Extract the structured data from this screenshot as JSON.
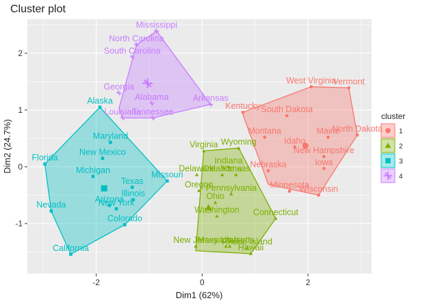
{
  "chart_data": {
    "type": "scatter",
    "title": "Cluster plot",
    "xlabel": "Dim1 (62%)",
    "ylabel": "Dim2 (24.7%)",
    "xlim": [
      -3.3,
      3.2
    ],
    "ylim": [
      -1.88,
      2.6
    ],
    "xticks": [
      -2,
      0,
      2
    ],
    "yticks": [
      -1,
      0,
      1,
      2
    ],
    "xtick_labels": [
      "-2",
      "0",
      "2"
    ],
    "ytick_labels": [
      "-1",
      "0",
      "1",
      "2"
    ],
    "grid": true,
    "legend": {
      "title": "cluster",
      "position": "right",
      "labels": [
        "1",
        "2",
        "3",
        "4"
      ]
    },
    "clusters": [
      {
        "name": "1",
        "color": "#F8766D",
        "shape": "circle",
        "center": [
          1.95,
          0.37
        ],
        "hull": [
          [
            0.77,
            0.96
          ],
          [
            2.06,
            1.41
          ],
          [
            2.77,
            1.39
          ],
          [
            2.93,
            0.56
          ],
          [
            2.2,
            -0.5
          ],
          [
            1.25,
            -0.31
          ],
          [
            0.77,
            0.92
          ]
        ],
        "points": [
          {
            "label": "West Virginia",
            "x": 2.06,
            "y": 1.41
          },
          {
            "label": "Vermont",
            "x": 2.77,
            "y": 1.39
          },
          {
            "label": "Kentucky",
            "x": 0.77,
            "y": 0.96
          },
          {
            "label": "South Dakota",
            "x": 1.6,
            "y": 0.9
          },
          {
            "label": "Montana",
            "x": 1.18,
            "y": 0.52
          },
          {
            "label": "Maine",
            "x": 2.38,
            "y": 0.52
          },
          {
            "label": "North Dakota",
            "x": 2.93,
            "y": 0.56
          },
          {
            "label": "Idaho",
            "x": 1.75,
            "y": 0.35
          },
          {
            "label": "New Hampshire",
            "x": 2.3,
            "y": 0.18
          },
          {
            "label": "Nebraska",
            "x": 1.25,
            "y": -0.07
          },
          {
            "label": "Iowa",
            "x": 2.3,
            "y": -0.03
          },
          {
            "label": "Minnesota",
            "x": 1.65,
            "y": -0.43
          },
          {
            "label": "Wisconsin",
            "x": 2.2,
            "y": -0.5
          }
        ]
      },
      {
        "name": "2",
        "color": "#7CAE00",
        "shape": "triangle",
        "center": [
          0.12,
          -0.72
        ],
        "hull": [
          [
            0.03,
            0.28
          ],
          [
            0.69,
            0.33
          ],
          [
            1.39,
            -0.91
          ],
          [
            0.92,
            -1.53
          ],
          [
            -0.12,
            -1.48
          ],
          [
            0.03,
            0.28
          ]
        ],
        "points": [
          {
            "label": "Wyoming",
            "x": 0.69,
            "y": 0.33
          },
          {
            "label": "Virginia",
            "x": 0.03,
            "y": 0.28
          },
          {
            "label": "Indiana",
            "x": 0.5,
            "y": 0.0
          },
          {
            "label": "Delaware",
            "x": -0.1,
            "y": -0.14
          },
          {
            "label": "Oklahoma",
            "x": 0.38,
            "y": -0.14
          },
          {
            "label": "Kansas",
            "x": 0.64,
            "y": -0.14
          },
          {
            "label": "Oregon",
            "x": -0.06,
            "y": -0.42
          },
          {
            "label": "Pennsylvania",
            "x": 0.55,
            "y": -0.48
          },
          {
            "label": "Ohio",
            "x": 0.25,
            "y": -0.63
          },
          {
            "label": "Washington",
            "x": 0.28,
            "y": -0.87
          },
          {
            "label": "Connecticut",
            "x": 1.39,
            "y": -0.91
          },
          {
            "label": "New Jersey",
            "x": -0.12,
            "y": -1.4
          },
          {
            "label": "Massachusetts",
            "x": 0.45,
            "y": -1.4
          },
          {
            "label": "Utah",
            "x": 0.52,
            "y": -1.4
          },
          {
            "label": "Rhode Island",
            "x": 0.85,
            "y": -1.43
          },
          {
            "label": "Hawaii",
            "x": 0.92,
            "y": -1.53
          }
        ]
      },
      {
        "name": "3",
        "color": "#00BFC4",
        "shape": "square",
        "center": [
          -1.85,
          -0.38
        ],
        "hull": [
          [
            -2.97,
            0.05
          ],
          [
            -1.93,
            1.05
          ],
          [
            -0.66,
            -0.25
          ],
          [
            -1.46,
            -1.02
          ],
          [
            -2.48,
            -1.54
          ],
          [
            -2.85,
            -0.78
          ],
          [
            -2.97,
            0.05
          ]
        ],
        "points": [
          {
            "label": "Alaska",
            "x": -1.93,
            "y": 1.05
          },
          {
            "label": "Maryland",
            "x": -1.73,
            "y": 0.43
          },
          {
            "label": "Florida",
            "x": -2.97,
            "y": 0.05
          },
          {
            "label": "New Mexico",
            "x": -1.88,
            "y": 0.15
          },
          {
            "label": "Michigan",
            "x": -2.06,
            "y": -0.17
          },
          {
            "label": "Missouri",
            "x": -0.66,
            "y": -0.25
          },
          {
            "label": "Texas",
            "x": -1.32,
            "y": -0.36
          },
          {
            "label": "Illinois",
            "x": -1.3,
            "y": -0.58
          },
          {
            "label": "Nevada",
            "x": -2.85,
            "y": -0.78
          },
          {
            "label": "Arizona",
            "x": -1.75,
            "y": -0.68
          },
          {
            "label": "New York",
            "x": -1.62,
            "y": -0.74
          },
          {
            "label": "Colorado",
            "x": -1.46,
            "y": -1.02
          },
          {
            "label": "California",
            "x": -2.48,
            "y": -1.54
          }
        ]
      },
      {
        "name": "4",
        "color": "#C77CFF",
        "shape": "cross",
        "center": [
          -1.03,
          1.47
        ],
        "hull": [
          [
            -1.57,
            1.03
          ],
          [
            -1.24,
            2.15
          ],
          [
            -0.86,
            2.39
          ],
          [
            0.16,
            1.1
          ],
          [
            -0.93,
            0.86
          ],
          [
            -1.5,
            0.86
          ],
          [
            -1.57,
            1.03
          ]
        ],
        "points": [
          {
            "label": "Mississippi",
            "x": -0.86,
            "y": 2.39
          },
          {
            "label": "North Carolina",
            "x": -1.24,
            "y": 2.15
          },
          {
            "label": "South Carolina",
            "x": -1.32,
            "y": 1.93
          },
          {
            "label": "Georgia",
            "x": -1.57,
            "y": 1.3
          },
          {
            "label": "Alabama",
            "x": -0.95,
            "y": 1.12
          },
          {
            "label": "Arkansas",
            "x": 0.16,
            "y": 1.1
          },
          {
            "label": "Louisiana",
            "x": -1.5,
            "y": 0.86
          },
          {
            "label": "Tennessee",
            "x": -0.93,
            "y": 0.86
          }
        ]
      }
    ]
  }
}
